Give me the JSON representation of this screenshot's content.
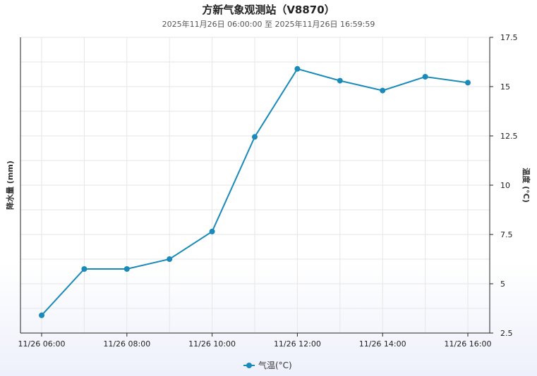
{
  "header": {
    "title": "方新气象观测站（V8870）",
    "subtitle": "2025年11月26日 06:00:00 至 2025年11月26日 16:59:59"
  },
  "colors": {
    "series": "#1a8ab8",
    "grid": "#e6e6e6"
  },
  "chart_data": {
    "type": "line",
    "x": [
      "11/26 06:00",
      "11/26 07:00",
      "11/26 08:00",
      "11/26 09:00",
      "11/26 10:00",
      "11/26 11:00",
      "11/26 12:00",
      "11/26 13:00",
      "11/26 14:00",
      "11/26 15:00",
      "11/26 16:00"
    ],
    "x_tick_labels": [
      "11/26 06:00",
      "11/26 08:00",
      "11/26 10:00",
      "11/26 12:00",
      "11/26 14:00",
      "11/26 16:00"
    ],
    "series": [
      {
        "name": "气温(°C)",
        "axis": "right",
        "values": [
          3.4,
          5.75,
          5.75,
          6.25,
          7.65,
          12.45,
          15.9,
          15.3,
          14.8,
          15.5,
          15.2
        ]
      }
    ],
    "y_left_label": "降水量 (mm)",
    "y_right_label": "温度 (°C)",
    "y_right_ticks": [
      "17.5",
      "15",
      "12.5",
      "10",
      "7.5",
      "5",
      "2.5"
    ],
    "y_right_range": [
      2.5,
      17.5
    ],
    "grid": true,
    "legend_position": "bottom-center"
  }
}
